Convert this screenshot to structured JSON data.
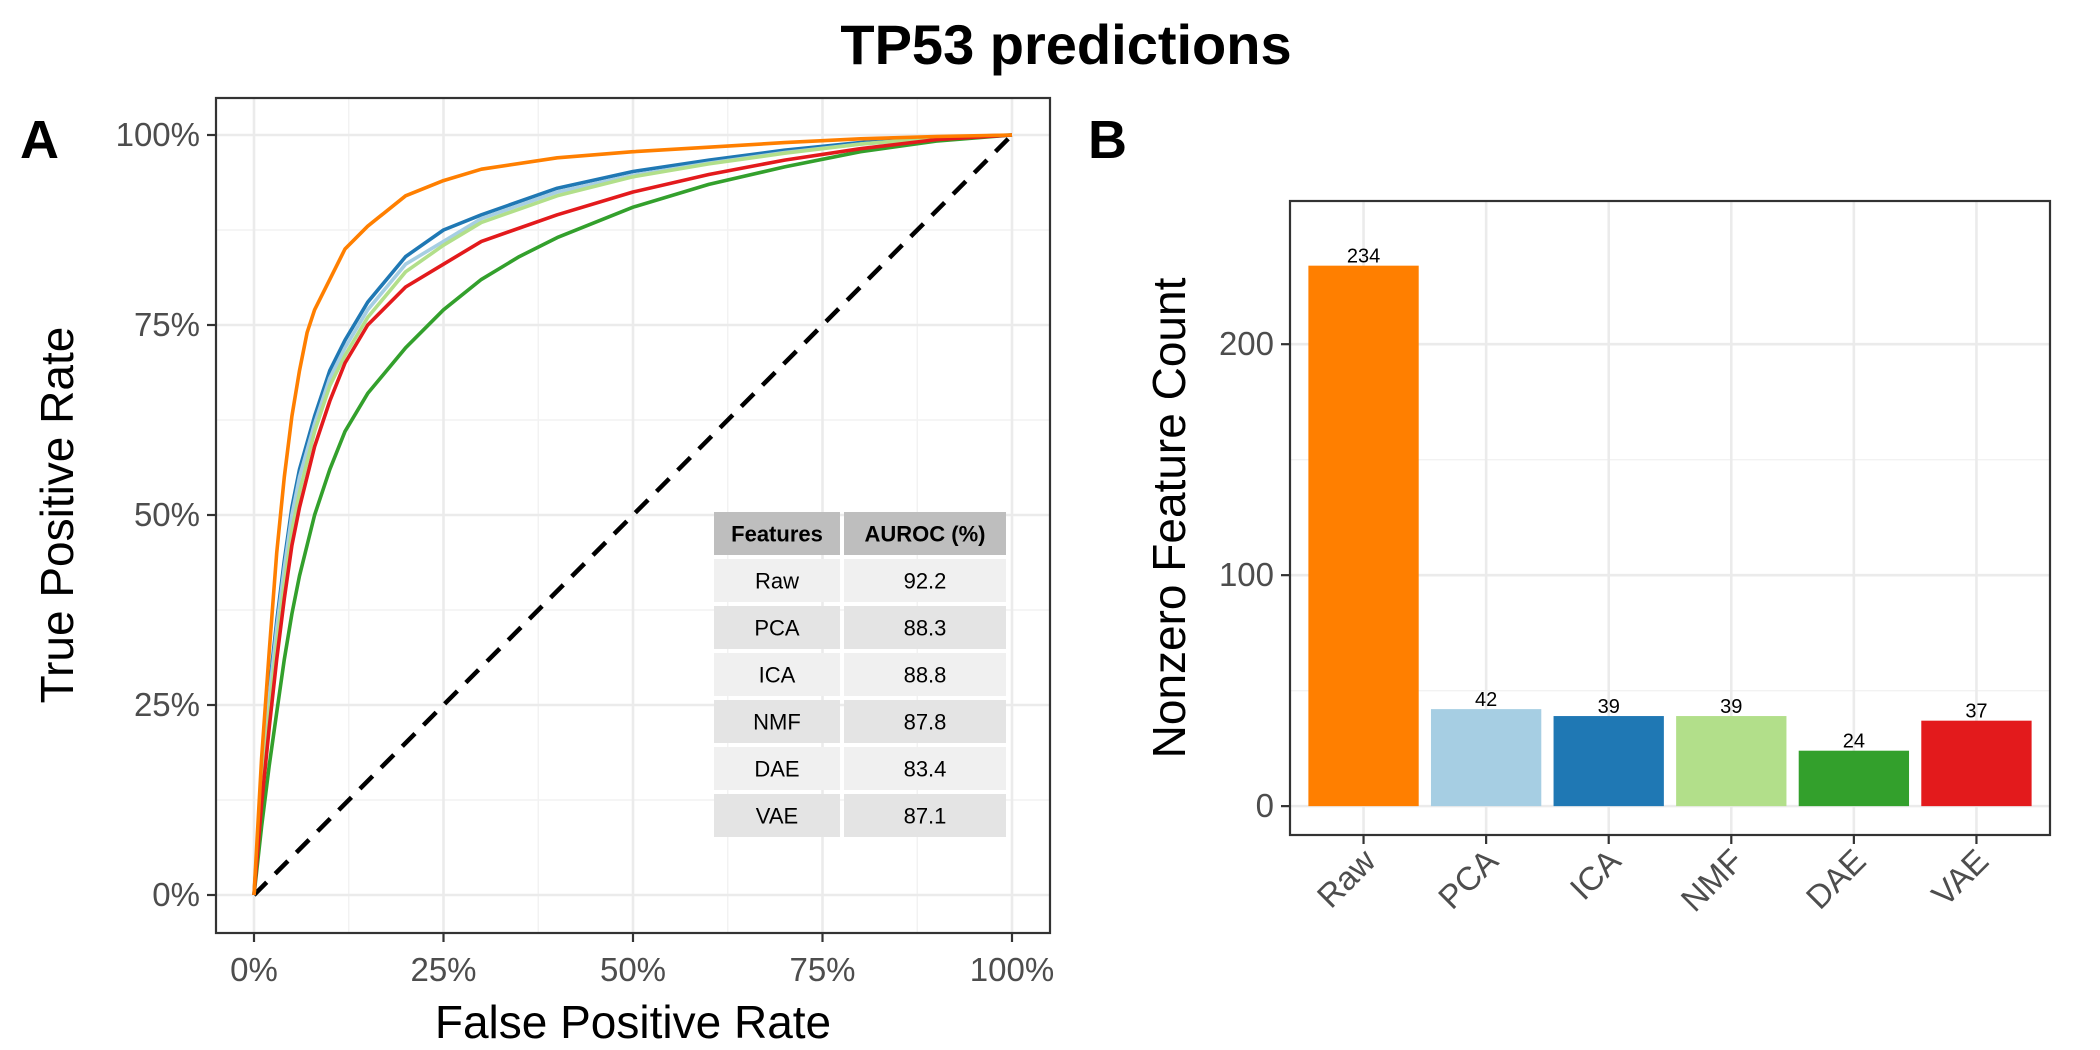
{
  "title": "TP53 predictions",
  "chart_data": [
    {
      "panel": "A",
      "type": "line",
      "xlabel": "False Positive Rate",
      "ylabel": "True Positive Rate",
      "xlim": [
        0,
        1
      ],
      "ylim": [
        0,
        1
      ],
      "xticks": [
        "0%",
        "25%",
        "50%",
        "75%",
        "100%"
      ],
      "yticks": [
        "0%",
        "25%",
        "50%",
        "75%",
        "100%"
      ],
      "grid": true,
      "diagonal": "dashed",
      "series": [
        {
          "name": "Raw",
          "color": "#ff7f00",
          "x": [
            0,
            0.01,
            0.02,
            0.03,
            0.04,
            0.05,
            0.06,
            0.07,
            0.08,
            0.1,
            0.12,
            0.15,
            0.2,
            0.25,
            0.3,
            0.4,
            0.5,
            0.6,
            0.7,
            0.8,
            0.9,
            1.0
          ],
          "y": [
            0,
            0.18,
            0.32,
            0.45,
            0.55,
            0.63,
            0.69,
            0.74,
            0.77,
            0.81,
            0.85,
            0.88,
            0.92,
            0.94,
            0.955,
            0.97,
            0.978,
            0.984,
            0.99,
            0.995,
            0.998,
            1.0
          ]
        },
        {
          "name": "PCA",
          "color": "#a6cee3",
          "x": [
            0,
            0.01,
            0.02,
            0.03,
            0.04,
            0.05,
            0.06,
            0.08,
            0.1,
            0.12,
            0.15,
            0.2,
            0.25,
            0.3,
            0.4,
            0.5,
            0.6,
            0.7,
            0.8,
            0.9,
            1.0
          ],
          "y": [
            0,
            0.14,
            0.26,
            0.35,
            0.43,
            0.5,
            0.55,
            0.62,
            0.68,
            0.72,
            0.77,
            0.83,
            0.86,
            0.89,
            0.925,
            0.947,
            0.963,
            0.977,
            0.988,
            0.996,
            1.0
          ]
        },
        {
          "name": "ICA",
          "color": "#1f78b4",
          "x": [
            0,
            0.01,
            0.02,
            0.03,
            0.04,
            0.05,
            0.06,
            0.08,
            0.1,
            0.12,
            0.15,
            0.2,
            0.25,
            0.3,
            0.4,
            0.5,
            0.6,
            0.7,
            0.8,
            0.9,
            1.0
          ],
          "y": [
            0,
            0.15,
            0.27,
            0.36,
            0.44,
            0.51,
            0.56,
            0.63,
            0.69,
            0.73,
            0.78,
            0.84,
            0.875,
            0.895,
            0.93,
            0.952,
            0.967,
            0.98,
            0.99,
            0.997,
            1.0
          ]
        },
        {
          "name": "NMF",
          "color": "#b2df8a",
          "x": [
            0,
            0.01,
            0.02,
            0.03,
            0.04,
            0.05,
            0.06,
            0.08,
            0.1,
            0.12,
            0.15,
            0.2,
            0.25,
            0.3,
            0.4,
            0.5,
            0.6,
            0.7,
            0.8,
            0.9,
            1.0
          ],
          "y": [
            0,
            0.13,
            0.24,
            0.33,
            0.41,
            0.48,
            0.53,
            0.61,
            0.67,
            0.71,
            0.76,
            0.82,
            0.855,
            0.885,
            0.92,
            0.945,
            0.962,
            0.976,
            0.988,
            0.996,
            1.0
          ]
        },
        {
          "name": "DAE",
          "color": "#33a02c",
          "x": [
            0,
            0.01,
            0.02,
            0.03,
            0.04,
            0.05,
            0.06,
            0.08,
            0.1,
            0.12,
            0.15,
            0.2,
            0.25,
            0.3,
            0.35,
            0.4,
            0.5,
            0.6,
            0.7,
            0.8,
            0.9,
            1.0
          ],
          "y": [
            0,
            0.09,
            0.17,
            0.24,
            0.31,
            0.37,
            0.42,
            0.5,
            0.56,
            0.61,
            0.66,
            0.72,
            0.77,
            0.81,
            0.84,
            0.865,
            0.905,
            0.935,
            0.958,
            0.978,
            0.992,
            1.0
          ]
        },
        {
          "name": "VAE",
          "color": "#e31a1c",
          "x": [
            0,
            0.01,
            0.02,
            0.03,
            0.04,
            0.05,
            0.06,
            0.08,
            0.1,
            0.12,
            0.15,
            0.2,
            0.25,
            0.3,
            0.4,
            0.5,
            0.6,
            0.7,
            0.8,
            0.9,
            1.0
          ],
          "y": [
            0,
            0.12,
            0.22,
            0.31,
            0.39,
            0.46,
            0.51,
            0.59,
            0.65,
            0.7,
            0.75,
            0.8,
            0.83,
            0.86,
            0.895,
            0.925,
            0.948,
            0.967,
            0.982,
            0.994,
            1.0
          ]
        }
      ],
      "table": {
        "headers": [
          "Features",
          "AUROC (%)"
        ],
        "rows": [
          [
            "Raw",
            "92.2"
          ],
          [
            "PCA",
            "88.3"
          ],
          [
            "ICA",
            "88.8"
          ],
          [
            "NMF",
            "87.8"
          ],
          [
            "DAE",
            "83.4"
          ],
          [
            "VAE",
            "87.1"
          ]
        ]
      }
    },
    {
      "panel": "B",
      "type": "bar",
      "xlabel": "",
      "ylabel": "Nonzero Feature Count",
      "categories": [
        "Raw",
        "PCA",
        "ICA",
        "NMF",
        "DAE",
        "VAE"
      ],
      "values": [
        234,
        42,
        39,
        39,
        24,
        37
      ],
      "data_labels": [
        "234",
        "42",
        "39",
        "39",
        "24",
        "37"
      ],
      "colors": [
        "#ff7f00",
        "#a6cee3",
        "#1f78b4",
        "#b2df8a",
        "#33a02c",
        "#e31a1c"
      ],
      "ylim": [
        -12.5,
        262
      ],
      "yticks": [
        0,
        100,
        200
      ],
      "ytick_labels": [
        "0",
        "100",
        "200"
      ],
      "grid": true
    }
  ]
}
